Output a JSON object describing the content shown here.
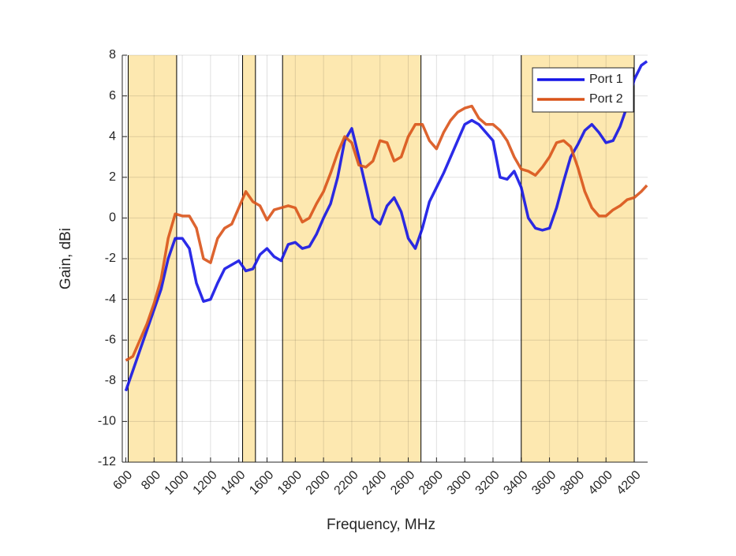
{
  "chart_data": {
    "type": "line",
    "xlabel": "Frequency, MHz",
    "ylabel": "Gain, dBi",
    "x": [
      600,
      650,
      700,
      750,
      800,
      850,
      900,
      950,
      1000,
      1050,
      1100,
      1150,
      1200,
      1250,
      1300,
      1350,
      1400,
      1450,
      1500,
      1550,
      1600,
      1650,
      1700,
      1750,
      1800,
      1850,
      1900,
      1950,
      2000,
      2050,
      2100,
      2150,
      2200,
      2250,
      2300,
      2350,
      2400,
      2450,
      2500,
      2550,
      2600,
      2650,
      2700,
      2750,
      2800,
      2850,
      2900,
      2950,
      3000,
      3050,
      3100,
      3150,
      3200,
      3250,
      3300,
      3350,
      3400,
      3450,
      3500,
      3550,
      3600,
      3650,
      3700,
      3750,
      3800,
      3850,
      3900,
      3950,
      4000,
      4050,
      4100,
      4150,
      4200,
      4250,
      4290
    ],
    "series": [
      {
        "name": "Port 1",
        "color": "#1414e6",
        "values": [
          -8.5,
          -7.5,
          -6.5,
          -5.5,
          -4.5,
          -3.5,
          -2,
          -1,
          -1,
          -1.5,
          -3.2,
          -4.1,
          -4,
          -3.2,
          -2.5,
          -2.3,
          -2.1,
          -2.6,
          -2.5,
          -1.8,
          -1.5,
          -1.9,
          -2.1,
          -1.3,
          -1.2,
          -1.5,
          -1.4,
          -0.8,
          0,
          0.7,
          2,
          3.8,
          4.4,
          3,
          1.5,
          0,
          -0.3,
          0.6,
          1,
          0.3,
          -1,
          -1.5,
          -0.5,
          0.8,
          1.5,
          2.2,
          3,
          3.8,
          4.6,
          4.8,
          4.6,
          4.2,
          3.8,
          2,
          1.9,
          2.3,
          1.5,
          0,
          -0.5,
          -0.6,
          -0.5,
          0.5,
          1.8,
          3,
          3.6,
          4.3,
          4.6,
          4.2,
          3.7,
          3.8,
          4.5,
          5.5,
          6.8,
          7.5,
          7.7
        ]
      },
      {
        "name": "Port 2",
        "color": "#d95319",
        "values": [
          -7,
          -6.8,
          -6,
          -5.2,
          -4.2,
          -3,
          -1,
          0.2,
          0.1,
          0.1,
          -0.5,
          -2,
          -2.2,
          -1,
          -0.5,
          -0.3,
          0.5,
          1.3,
          0.8,
          0.6,
          -0.1,
          0.4,
          0.5,
          0.6,
          0.5,
          -0.2,
          0,
          0.7,
          1.3,
          2.2,
          3.2,
          4,
          3.7,
          2.6,
          2.5,
          2.8,
          3.8,
          3.7,
          2.8,
          3,
          4,
          4.6,
          4.6,
          3.8,
          3.4,
          4.2,
          4.8,
          5.2,
          5.4,
          5.5,
          4.9,
          4.6,
          4.6,
          4.3,
          3.8,
          3,
          2.4,
          2.3,
          2.1,
          2.5,
          3,
          3.7,
          3.8,
          3.5,
          2.5,
          1.3,
          0.5,
          0.1,
          0.1,
          0.4,
          0.6,
          0.9,
          1,
          1.3,
          1.6
        ]
      }
    ],
    "bands": [
      [
        617,
        960
      ],
      [
        1427,
        1518
      ],
      [
        1710,
        2690
      ],
      [
        3400,
        4200
      ]
    ],
    "band_color": "#fde8b0",
    "xlim": [
      575,
      4295
    ],
    "ylim": [
      -12,
      8
    ],
    "xticks": [
      600,
      800,
      1000,
      1200,
      1400,
      1600,
      1800,
      2000,
      2200,
      2400,
      2600,
      2800,
      3000,
      3200,
      3400,
      3600,
      3800,
      4000,
      4200
    ],
    "yticks": [
      -12,
      -10,
      -8,
      -6,
      -4,
      -2,
      0,
      2,
      4,
      6,
      8
    ],
    "grid": true,
    "legend": "top-right"
  }
}
